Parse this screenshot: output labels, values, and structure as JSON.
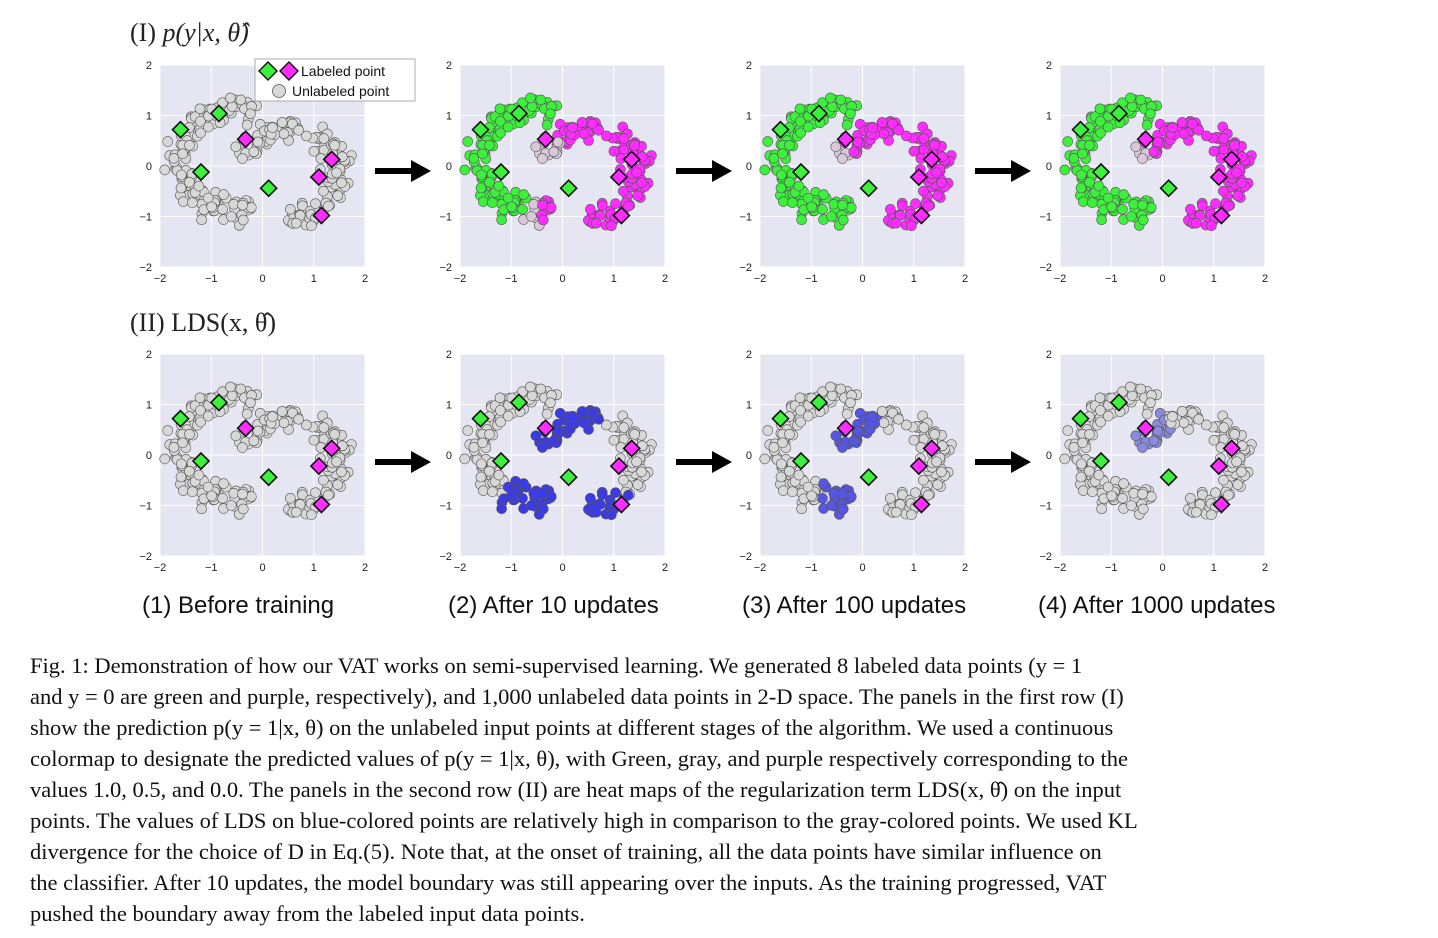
{
  "figure": {
    "row_labels": [
      {
        "roman": "(I)",
        "expr": "p(y|x, θ̂)"
      },
      {
        "roman": "(II)",
        "expr": "LDS(x, θ̂)"
      }
    ],
    "legend": {
      "labeled": "Labeled point",
      "unlabeled": "Unlabeled point"
    },
    "panel_captions": [
      "(1) Before training",
      "(2) After 10 updates",
      "(3) After 100 updates",
      "(4) After 1000 updates"
    ],
    "arrow": "→",
    "colors": {
      "green": "#3cf03c",
      "magenta": "#ff2cff",
      "gray": "#d8d8d8",
      "blue": "#2a2ae6",
      "panel_bg": "#e6e6f2",
      "grid": "#ffffff"
    }
  },
  "chart_data": [
    {
      "type": "scatter",
      "description_source": "axes printed on every panel",
      "xlim": [
        -2,
        2
      ],
      "ylim": [
        -2,
        2
      ],
      "x_ticks": [
        "−2",
        "−1",
        "0",
        "1",
        "2"
      ],
      "y_ticks": [
        "2",
        "1",
        "0",
        "−1",
        "−2"
      ],
      "grid": true,
      "legend_placement": "top-right (panel 1 only)",
      "labeled_points": [
        {
          "x": -1.6,
          "y": 0.72,
          "class": "green"
        },
        {
          "x": -0.85,
          "y": 1.04,
          "class": "green"
        },
        {
          "x": -1.2,
          "y": -0.12,
          "class": "green"
        },
        {
          "x": 0.12,
          "y": -0.44,
          "class": "green"
        },
        {
          "x": -0.33,
          "y": 0.53,
          "class": "magenta"
        },
        {
          "x": 1.35,
          "y": 0.13,
          "class": "magenta"
        },
        {
          "x": 1.1,
          "y": -0.22,
          "class": "magenta"
        },
        {
          "x": 1.15,
          "y": -0.98,
          "class": "magenta"
        }
      ],
      "unlabeled_count": 1000
    }
  ],
  "caption": {
    "lines": [
      "Fig. 1:  Demonstration of how our VAT works on semi-supervised learning. We generated 8 labeled data points (y = 1",
      "and y = 0 are green and purple, respectively), and 1,000 unlabeled data points in 2-D space. The panels in the first row (I)",
      "show the prediction p(y = 1|x, θ) on the unlabeled input points at different stages of the algorithm. We used a continuous",
      "colormap to designate the predicted values of p(y = 1|x, θ), with Green, gray, and purple respectively corresponding to the",
      "values 1.0, 0.5, and 0.0. The panels in the second row (II) are heat maps of the regularization term LDS(x, θ̂) on the input",
      "points. The values of LDS on blue-colored points are relatively high in comparison to the gray-colored points. We used KL",
      "divergence for the choice of D in Eq.(5). Note that, at the onset of training, all the data points have similar influence on",
      "the classifier. After 10 updates, the model boundary was still appearing over the inputs. As the training progressed, VAT",
      "pushed the boundary away from the labeled input data points."
    ]
  }
}
